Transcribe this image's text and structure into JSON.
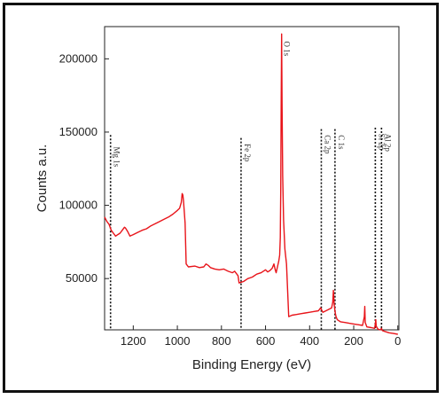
{
  "chart_data": {
    "type": "line",
    "title": "",
    "xlabel": "Binding Energy (eV)",
    "ylabel": "Counts a.u.",
    "xlim": [
      1330,
      -5
    ],
    "ylim": [
      15000,
      222000
    ],
    "x_reversed": true,
    "grid": false,
    "legend": "none",
    "x_ticks": [
      1200,
      1000,
      800,
      600,
      400,
      200,
      0
    ],
    "y_ticks": [
      50000,
      100000,
      150000,
      200000
    ],
    "series": [
      {
        "color": "#e8141a",
        "x": [
          1330,
          1320,
          1310,
          1300,
          1290,
          1280,
          1270,
          1260,
          1250,
          1240,
          1235,
          1225,
          1215,
          1200,
          1180,
          1160,
          1140,
          1120,
          1100,
          1080,
          1060,
          1040,
          1020,
          1000,
          990,
          982,
          978,
          975,
          972,
          965,
          960,
          950,
          920,
          900,
          880,
          870,
          860,
          850,
          830,
          810,
          790,
          770,
          750,
          740,
          730,
          725,
          720,
          700,
          680,
          660,
          640,
          620,
          600,
          590,
          580,
          570,
          562,
          556,
          552,
          546,
          540,
          536,
          533,
          531,
          529,
          527,
          525,
          522,
          518,
          512,
          505,
          495,
          480,
          460,
          440,
          420,
          400,
          380,
          360,
          350,
          340,
          320,
          300,
          295,
          292,
          289,
          286,
          283,
          280,
          275,
          270,
          260,
          240,
          220,
          200,
          180,
          160,
          152,
          150,
          148,
          140,
          120,
          105,
          102,
          100,
          98,
          90,
          80,
          74,
          70,
          60,
          40,
          20,
          0
        ],
        "y": [
          92000,
          89000,
          87000,
          83000,
          81000,
          79000,
          80000,
          81000,
          83000,
          85000,
          84500,
          82000,
          79000,
          80000,
          81500,
          83000,
          84000,
          86000,
          87500,
          89000,
          90500,
          92000,
          94000,
          96500,
          98000,
          102000,
          108000,
          107000,
          103000,
          88000,
          60000,
          58000,
          58500,
          57500,
          58000,
          60000,
          59000,
          57500,
          56500,
          56000,
          56500,
          55000,
          54000,
          55000,
          53000,
          52000,
          47000,
          48000,
          50000,
          51000,
          53000,
          54000,
          56000,
          54500,
          55500,
          57000,
          60000,
          56000,
          54000,
          58000,
          62000,
          66000,
          78000,
          110000,
          170000,
          217000,
          168000,
          120000,
          90000,
          70000,
          60000,
          24000,
          25000,
          25500,
          26000,
          26500,
          27000,
          27500,
          28000,
          30000,
          27000,
          28500,
          30000,
          34000,
          42000,
          33000,
          29000,
          26000,
          24000,
          22000,
          21500,
          20500,
          20000,
          19500,
          19000,
          18500,
          18000,
          24000,
          31000,
          20000,
          17000,
          16500,
          16000,
          19000,
          22000,
          17500,
          15500,
          15000,
          16000,
          14500,
          14000,
          13000,
          12500,
          12000
        ]
      }
    ],
    "peaks": [
      {
        "label": "Mg 1s",
        "x": 1303,
        "y_top": 148000,
        "text_y": 140000
      },
      {
        "label": "Fe 2p",
        "x": 711,
        "y_top": 146000,
        "text_y": 142000
      },
      {
        "label": "O 1s",
        "x": 531,
        "y_top": null,
        "text_y": 212000
      },
      {
        "label": "Ca 2p",
        "x": 347,
        "y_top": 152000,
        "text_y": 148000
      },
      {
        "label": "C 1s",
        "x": 285,
        "y_top": 152000,
        "text_y": 148000
      },
      {
        "label": "Si 2p",
        "x": 102,
        "y_top": 153000,
        "text_y": 149000
      },
      {
        "label": "Al 2p",
        "x": 74,
        "y_top": 153000,
        "text_y": 149000
      }
    ]
  }
}
